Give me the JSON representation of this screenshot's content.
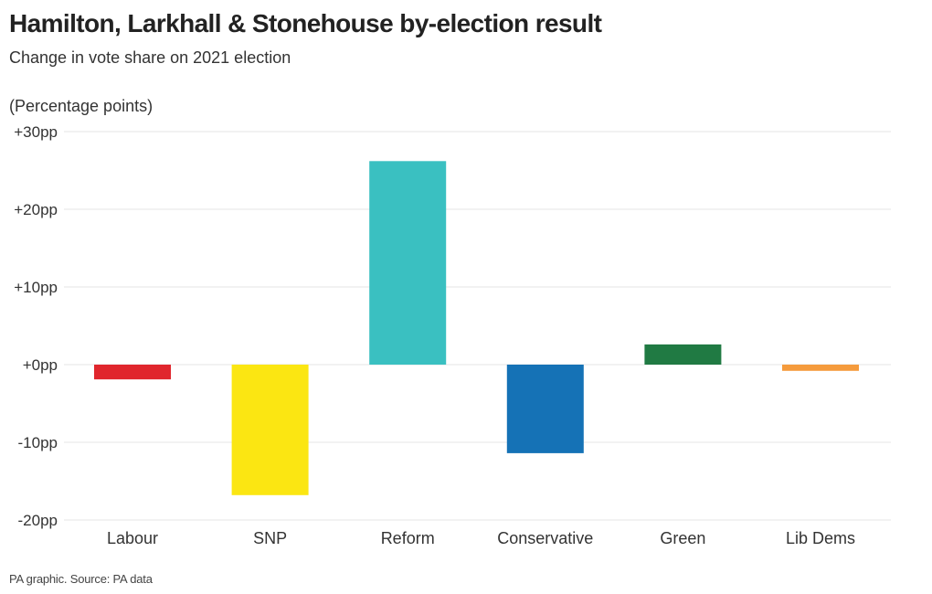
{
  "title": "Hamilton, Larkhall & Stonehouse by-election result",
  "subtitle": "Change in vote share on 2021 election",
  "unit_label": "(Percentage points)",
  "footer": "PA graphic. Source: PA data",
  "colors": {
    "Labour": "#e0262d",
    "SNP": "#fbe612",
    "Reform": "#3ac0c1",
    "Conservative": "#1572b6",
    "Green": "#207a43",
    "Lib Dems": "#f59b3c",
    "gridline": "#e6e6e6"
  },
  "chart_data": {
    "type": "bar",
    "title": "Hamilton, Larkhall & Stonehouse by-election result",
    "subtitle": "Change in vote share on 2021 election",
    "ylabel": "(Percentage points)",
    "categories": [
      "Labour",
      "SNP",
      "Reform",
      "Conservative",
      "Green",
      "Lib Dems"
    ],
    "values": [
      -1.9,
      -16.8,
      26.2,
      -11.4,
      2.6,
      -0.8
    ],
    "ylim": [
      -20,
      30
    ],
    "yticks": [
      30,
      20,
      10,
      0,
      -10,
      -20
    ],
    "ytick_labels": [
      "+30pp",
      "+20pp",
      "+10pp",
      "+0pp",
      "-10pp",
      "-20pp"
    ],
    "grid": true,
    "legend": "none"
  }
}
